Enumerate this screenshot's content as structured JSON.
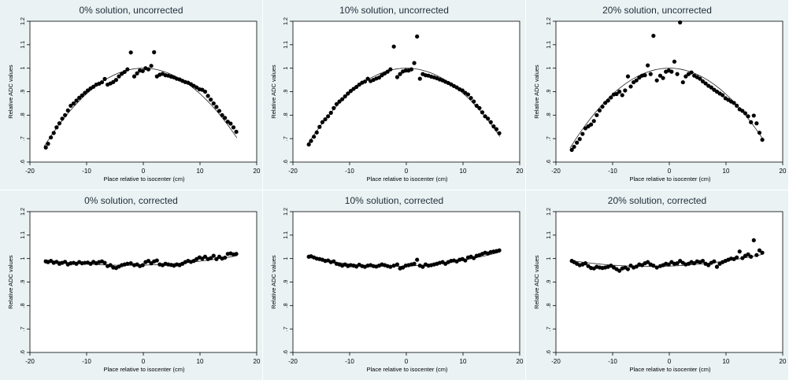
{
  "chart_data": [
    {
      "type": "scatter",
      "title": "0% solution, uncorrected",
      "xlabel": "Place relative to isocenter (cm)",
      "ylabel": "Relative ADC values",
      "xlim": [
        -20,
        20
      ],
      "ylim": [
        0.6,
        1.2
      ],
      "xticks": [
        "-20",
        "-10",
        "0",
        "10",
        "20"
      ],
      "yticks": [
        ".6",
        ".7",
        ".8",
        ".9",
        "1",
        "1.1",
        "1.2"
      ],
      "fit": {
        "type": "quadratic",
        "a": -0.00109,
        "b": 0.0,
        "c": 1.0
      },
      "points": {
        "x": [
          -17.2,
          -16.8,
          -16.3,
          -15.8,
          -15.3,
          -14.8,
          -14.3,
          -13.8,
          -13.3,
          -12.8,
          -12.3,
          -11.8,
          -11.3,
          -10.8,
          -10.3,
          -9.8,
          -9.3,
          -8.8,
          -8.3,
          -7.8,
          -7.3,
          -6.8,
          -6.3,
          -5.8,
          -5.3,
          -4.8,
          -4.3,
          -3.8,
          -3.3,
          -2.8,
          -2.2,
          -1.6,
          -1.1,
          -0.6,
          -0.1,
          0.4,
          0.9,
          1.4,
          1.9,
          2.4,
          2.9,
          3.4,
          3.9,
          4.4,
          4.9,
          5.4,
          5.9,
          6.4,
          6.9,
          7.4,
          7.9,
          8.4,
          8.9,
          9.4,
          9.9,
          10.4,
          10.9,
          11.4,
          11.9,
          12.4,
          12.9,
          13.4,
          13.9,
          14.4,
          14.9,
          15.4,
          15.9,
          16.4
        ],
        "y": [
          0.662,
          0.678,
          0.705,
          0.724,
          0.748,
          0.765,
          0.785,
          0.8,
          0.82,
          0.84,
          0.85,
          0.862,
          0.874,
          0.884,
          0.895,
          0.905,
          0.914,
          0.921,
          0.93,
          0.934,
          0.94,
          0.954,
          0.93,
          0.935,
          0.941,
          0.95,
          0.965,
          0.976,
          0.984,
          0.995,
          1.067,
          0.965,
          0.978,
          0.99,
          0.988,
          1.0,
          0.995,
          1.01,
          1.068,
          0.965,
          0.972,
          0.976,
          0.97,
          0.968,
          0.964,
          0.961,
          0.955,
          0.952,
          0.946,
          0.941,
          0.938,
          0.932,
          0.925,
          0.918,
          0.91,
          0.908,
          0.9,
          0.882,
          0.866,
          0.85,
          0.835,
          0.818,
          0.8,
          0.788,
          0.772,
          0.764,
          0.748,
          0.729
        ]
      }
    },
    {
      "type": "scatter",
      "title": "10% solution, uncorrected",
      "xlabel": "Place relative to isocenter (cm)",
      "ylabel": "Relative ADC values",
      "xlim": [
        -20,
        20
      ],
      "ylim": [
        0.6,
        1.2
      ],
      "xticks": [
        "-20",
        "-10",
        "0",
        "10",
        "20"
      ],
      "yticks": [
        ".6",
        ".7",
        ".8",
        ".9",
        "1",
        "1.1",
        "1.2"
      ],
      "fit": {
        "type": "quadratic",
        "a": -0.00107,
        "b": 0.0,
        "c": 1.0
      },
      "points": {
        "x": [
          -17.2,
          -16.8,
          -16.3,
          -15.8,
          -15.3,
          -14.8,
          -14.3,
          -13.8,
          -13.3,
          -12.8,
          -12.3,
          -11.8,
          -11.3,
          -10.8,
          -10.3,
          -9.8,
          -9.3,
          -8.8,
          -8.3,
          -7.8,
          -7.3,
          -6.8,
          -6.3,
          -5.8,
          -5.3,
          -4.8,
          -4.3,
          -3.8,
          -3.3,
          -2.8,
          -2.2,
          -1.6,
          -1.1,
          -0.6,
          -0.1,
          0.4,
          0.9,
          1.4,
          1.9,
          2.4,
          2.9,
          3.4,
          3.9,
          4.4,
          4.9,
          5.4,
          5.9,
          6.4,
          6.9,
          7.4,
          7.9,
          8.4,
          8.9,
          9.4,
          9.9,
          10.4,
          10.9,
          11.4,
          11.9,
          12.4,
          12.9,
          13.4,
          13.9,
          14.4,
          14.9,
          15.4,
          15.9,
          16.4
        ],
        "y": [
          0.675,
          0.69,
          0.708,
          0.726,
          0.75,
          0.77,
          0.782,
          0.795,
          0.81,
          0.83,
          0.847,
          0.858,
          0.868,
          0.88,
          0.892,
          0.903,
          0.912,
          0.92,
          0.93,
          0.938,
          0.943,
          0.955,
          0.945,
          0.95,
          0.956,
          0.96,
          0.97,
          0.978,
          0.985,
          0.995,
          1.092,
          0.962,
          0.975,
          0.986,
          0.99,
          0.99,
          0.995,
          1.022,
          1.135,
          0.955,
          0.975,
          0.97,
          0.968,
          0.964,
          0.961,
          0.957,
          0.952,
          0.948,
          0.942,
          0.937,
          0.931,
          0.924,
          0.918,
          0.91,
          0.905,
          0.895,
          0.888,
          0.873,
          0.858,
          0.84,
          0.83,
          0.812,
          0.795,
          0.785,
          0.77,
          0.752,
          0.74,
          0.723
        ]
      }
    },
    {
      "type": "scatter",
      "title": "20% solution, uncorrected",
      "xlabel": "Place relative to isocenter (cm)",
      "ylabel": "Relative ADC values",
      "xlim": [
        -20,
        20
      ],
      "ylim": [
        0.6,
        1.2
      ],
      "xticks": [
        "-20",
        "-10",
        "0",
        "10",
        "20"
      ],
      "yticks": [
        ".6",
        ".7",
        ".8",
        ".9",
        "1",
        "1.1",
        "1.2"
      ],
      "fit": {
        "type": "quadratic",
        "a": -0.00111,
        "b": 0.0,
        "c": 1.0
      },
      "points": {
        "x": [
          -17.2,
          -16.8,
          -16.3,
          -15.8,
          -15.3,
          -14.8,
          -14.3,
          -13.8,
          -13.3,
          -12.8,
          -12.3,
          -11.8,
          -11.3,
          -10.8,
          -10.3,
          -9.8,
          -9.3,
          -8.8,
          -8.3,
          -7.8,
          -7.3,
          -6.8,
          -6.3,
          -5.8,
          -5.3,
          -4.8,
          -4.3,
          -3.8,
          -3.3,
          -2.8,
          -2.2,
          -1.6,
          -1.1,
          -0.6,
          -0.1,
          0.4,
          0.9,
          1.4,
          1.9,
          2.4,
          2.9,
          3.4,
          3.9,
          4.4,
          4.9,
          5.4,
          5.9,
          6.4,
          6.9,
          7.4,
          7.9,
          8.4,
          8.9,
          9.4,
          9.9,
          10.4,
          10.9,
          11.4,
          11.9,
          12.4,
          12.9,
          13.4,
          13.9,
          14.4,
          14.9,
          15.4,
          15.9,
          16.4
        ],
        "y": [
          0.652,
          0.665,
          0.683,
          0.698,
          0.72,
          0.744,
          0.752,
          0.76,
          0.775,
          0.8,
          0.82,
          0.836,
          0.852,
          0.862,
          0.875,
          0.888,
          0.89,
          0.9,
          0.885,
          0.905,
          0.965,
          0.922,
          0.94,
          0.948,
          0.96,
          0.968,
          0.97,
          1.012,
          0.975,
          1.138,
          0.948,
          0.968,
          0.958,
          0.985,
          0.99,
          0.985,
          1.028,
          0.975,
          1.195,
          0.94,
          0.965,
          0.975,
          0.982,
          0.968,
          0.962,
          0.955,
          0.944,
          0.935,
          0.925,
          0.918,
          0.908,
          0.9,
          0.892,
          0.885,
          0.872,
          0.865,
          0.858,
          0.852,
          0.84,
          0.825,
          0.818,
          0.808,
          0.795,
          0.77,
          0.798,
          0.765,
          0.725,
          0.695
        ]
      }
    },
    {
      "type": "scatter",
      "title": "0% solution, corrected",
      "xlabel": "Place relative to isocenter (cm)",
      "ylabel": "Relative ADC values",
      "xlim": [
        -20,
        20
      ],
      "ylim": [
        0.6,
        1.2
      ],
      "xticks": [
        "-20",
        "-10",
        "0",
        "10",
        "20"
      ],
      "yticks": [
        ".6",
        ".7",
        ".8",
        ".9",
        "1",
        "1.1",
        "1.2"
      ],
      "fit": {
        "type": "quadratic",
        "a": 0.00011,
        "b": 0.0006,
        "c": 0.972
      },
      "points": {
        "x": [
          -17.2,
          -16.8,
          -16.3,
          -15.8,
          -15.3,
          -14.8,
          -14.3,
          -13.8,
          -13.3,
          -12.8,
          -12.3,
          -11.8,
          -11.3,
          -10.8,
          -10.3,
          -9.8,
          -9.3,
          -8.8,
          -8.3,
          -7.8,
          -7.3,
          -6.8,
          -6.3,
          -5.8,
          -5.3,
          -4.8,
          -4.3,
          -3.8,
          -3.3,
          -2.8,
          -2.2,
          -1.6,
          -1.1,
          -0.6,
          -0.1,
          0.4,
          0.9,
          1.4,
          1.9,
          2.4,
          2.9,
          3.4,
          3.9,
          4.4,
          4.9,
          5.4,
          5.9,
          6.4,
          6.9,
          7.4,
          7.9,
          8.4,
          8.9,
          9.4,
          9.9,
          10.4,
          10.9,
          11.4,
          11.9,
          12.4,
          12.9,
          13.4,
          13.9,
          14.4,
          14.9,
          15.4,
          15.9,
          16.4
        ],
        "y": [
          0.988,
          0.985,
          0.99,
          0.982,
          0.986,
          0.978,
          0.982,
          0.986,
          0.975,
          0.98,
          0.982,
          0.978,
          0.985,
          0.98,
          0.982,
          0.983,
          0.978,
          0.986,
          0.98,
          0.985,
          0.988,
          0.982,
          0.968,
          0.972,
          0.962,
          0.96,
          0.966,
          0.972,
          0.975,
          0.978,
          0.98,
          0.972,
          0.975,
          0.968,
          0.972,
          0.985,
          0.99,
          0.98,
          0.988,
          0.992,
          0.975,
          0.972,
          0.978,
          0.975,
          0.973,
          0.97,
          0.975,
          0.972,
          0.978,
          0.985,
          0.99,
          0.986,
          0.99,
          0.998,
          1.005,
          1.0,
          1.008,
          0.998,
          1.002,
          1.012,
          0.998,
          1.008,
          1.0,
          1.004,
          1.02,
          1.022,
          1.018,
          1.02
        ]
      }
    },
    {
      "type": "scatter",
      "title": "10% solution, corrected",
      "xlabel": "Place relative to isocenter (cm)",
      "ylabel": "Relative ADC values",
      "xlim": [
        -20,
        20
      ],
      "ylim": [
        0.6,
        1.2
      ],
      "xticks": [
        "-20",
        "-10",
        "0",
        "10",
        "20"
      ],
      "yticks": [
        ".6",
        ".7",
        ".8",
        ".9",
        "1",
        "1.1",
        "1.2"
      ],
      "fit": {
        "type": "quadratic",
        "a": 0.00017,
        "b": 0.0008,
        "c": 0.968
      },
      "points": {
        "x": [
          -17.2,
          -16.8,
          -16.3,
          -15.8,
          -15.3,
          -14.8,
          -14.3,
          -13.8,
          -13.3,
          -12.8,
          -12.3,
          -11.8,
          -11.3,
          -10.8,
          -10.3,
          -9.8,
          -9.3,
          -8.8,
          -8.3,
          -7.8,
          -7.3,
          -6.8,
          -6.3,
          -5.8,
          -5.3,
          -4.8,
          -4.3,
          -3.8,
          -3.3,
          -2.8,
          -2.2,
          -1.6,
          -1.1,
          -0.6,
          -0.1,
          0.4,
          0.9,
          1.4,
          1.9,
          2.4,
          2.9,
          3.4,
          3.9,
          4.4,
          4.9,
          5.4,
          5.9,
          6.4,
          6.9,
          7.4,
          7.9,
          8.4,
          8.9,
          9.4,
          9.9,
          10.4,
          10.9,
          11.4,
          11.9,
          12.4,
          12.9,
          13.4,
          13.9,
          14.4,
          14.9,
          15.4,
          15.9,
          16.4
        ],
        "y": [
          1.008,
          1.01,
          1.005,
          1.0,
          0.998,
          0.995,
          0.99,
          0.992,
          0.985,
          0.988,
          0.978,
          0.975,
          0.97,
          0.975,
          0.968,
          0.972,
          0.97,
          0.966,
          0.974,
          0.968,
          0.965,
          0.97,
          0.972,
          0.968,
          0.966,
          0.97,
          0.975,
          0.972,
          0.968,
          0.965,
          0.97,
          0.975,
          0.958,
          0.962,
          0.97,
          0.972,
          0.975,
          0.978,
          0.995,
          0.97,
          0.965,
          0.975,
          0.97,
          0.972,
          0.975,
          0.978,
          0.982,
          0.985,
          0.978,
          0.985,
          0.99,
          0.992,
          0.988,
          0.995,
          0.998,
          0.992,
          1.005,
          1.008,
          1.002,
          1.012,
          1.015,
          1.02,
          1.025,
          1.022,
          1.028,
          1.03,
          1.032,
          1.035
        ]
      }
    },
    {
      "type": "scatter",
      "title": "20% solution, corrected",
      "xlabel": "Place relative to isocenter (cm)",
      "ylabel": "Relative ADC values",
      "xlim": [
        -20,
        20
      ],
      "ylim": [
        0.6,
        1.2
      ],
      "xticks": [
        "-20",
        "-10",
        "0",
        "10",
        "20"
      ],
      "yticks": [
        ".6",
        ".7",
        ".8",
        ".9",
        "1",
        "1.1",
        "1.2"
      ],
      "fit": {
        "type": "quadratic",
        "a": 0.00013,
        "b": 0.0009,
        "c": 0.968
      },
      "points": {
        "x": [
          -17.2,
          -16.8,
          -16.3,
          -15.8,
          -15.3,
          -14.8,
          -14.3,
          -13.8,
          -13.3,
          -12.8,
          -12.3,
          -11.8,
          -11.3,
          -10.8,
          -10.3,
          -9.8,
          -9.3,
          -8.8,
          -8.3,
          -7.8,
          -7.3,
          -6.8,
          -6.3,
          -5.8,
          -5.3,
          -4.8,
          -4.3,
          -3.8,
          -3.3,
          -2.8,
          -2.2,
          -1.6,
          -1.1,
          -0.6,
          -0.1,
          0.4,
          0.9,
          1.4,
          1.9,
          2.4,
          2.9,
          3.4,
          3.9,
          4.4,
          4.9,
          5.4,
          5.9,
          6.4,
          6.9,
          7.4,
          7.9,
          8.4,
          8.9,
          9.4,
          9.9,
          10.4,
          10.9,
          11.4,
          11.9,
          12.4,
          12.9,
          13.4,
          13.9,
          14.4,
          14.9,
          15.4,
          15.9,
          16.4
        ],
        "y": [
          0.99,
          0.985,
          0.978,
          0.972,
          0.975,
          0.98,
          0.968,
          0.96,
          0.958,
          0.965,
          0.962,
          0.96,
          0.962,
          0.965,
          0.97,
          0.962,
          0.955,
          0.948,
          0.958,
          0.962,
          0.955,
          0.97,
          0.962,
          0.966,
          0.975,
          0.972,
          0.98,
          0.985,
          0.975,
          0.97,
          0.962,
          0.968,
          0.972,
          0.978,
          0.975,
          0.985,
          0.978,
          0.98,
          0.99,
          0.982,
          0.975,
          0.978,
          0.985,
          0.98,
          0.988,
          0.985,
          0.99,
          0.978,
          0.972,
          0.982,
          0.988,
          0.965,
          0.978,
          0.985,
          0.99,
          0.995,
          1.0,
          0.998,
          1.005,
          1.03,
          1.002,
          1.012,
          1.018,
          1.008,
          1.078,
          1.015,
          1.035,
          1.025
        ]
      }
    }
  ]
}
